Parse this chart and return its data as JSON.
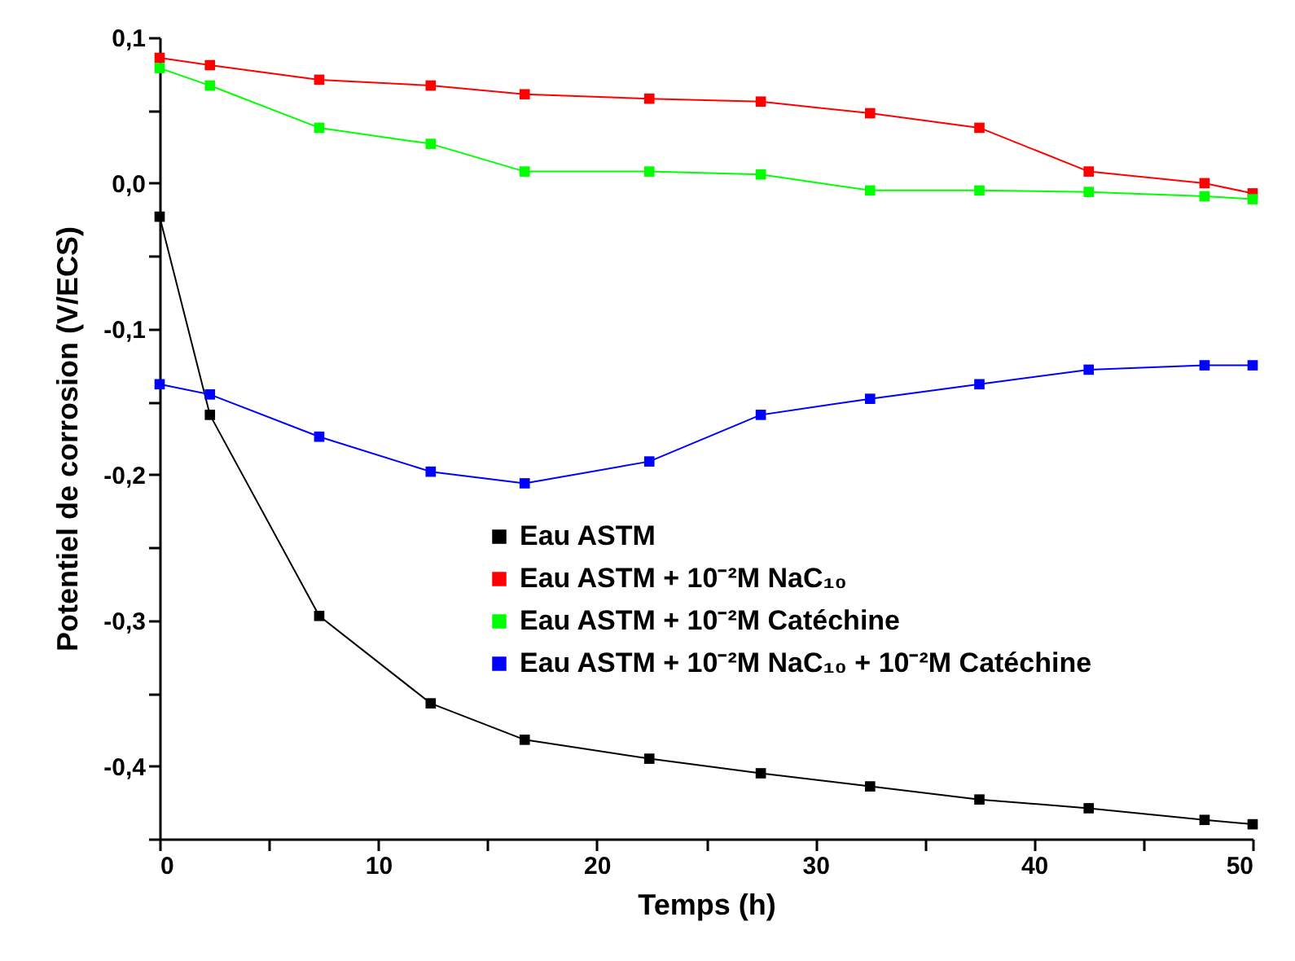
{
  "chart_data": {
    "type": "line",
    "xlabel": "Temps (h)",
    "ylabel": "Potentiel de corrosion (V/ECS)",
    "x": [
      0,
      2.3,
      7.3,
      12.4,
      16.7,
      22.4,
      27.5,
      32.5,
      37.5,
      42.5,
      47.8,
      50
    ],
    "series": [
      {
        "name": "Eau ASTM",
        "color": "#000000",
        "values": [
          -0.023,
          -0.159,
          -0.297,
          -0.357,
          -0.382,
          -0.395,
          -0.405,
          -0.414,
          -0.423,
          -0.429,
          -0.437,
          -0.44
        ]
      },
      {
        "name": "Eau ASTM + 10⁻²M NaC₁₀",
        "color": "#ff0000",
        "values": [
          0.086,
          0.081,
          0.071,
          0.067,
          0.061,
          0.058,
          0.056,
          0.048,
          0.038,
          0.008,
          0.0,
          -0.007
        ]
      },
      {
        "name": "Eau ASTM + 10⁻²M Catéchine",
        "color": "#00ff00",
        "values": [
          0.079,
          0.067,
          0.038,
          0.027,
          0.008,
          0.008,
          0.006,
          -0.005,
          -0.005,
          -0.006,
          -0.009,
          -0.011
        ]
      },
      {
        "name": "Eau ASTM + 10⁻²M NaC₁₀ + 10⁻²M Catéchine",
        "color": "#0000ff",
        "values": [
          -0.138,
          -0.145,
          -0.174,
          -0.198,
          -0.206,
          -0.191,
          -0.159,
          -0.148,
          -0.138,
          -0.128,
          -0.125,
          -0.125
        ]
      }
    ],
    "xlim": [
      0,
      50
    ],
    "xticks": [
      0,
      {
        "value": 5,
        "label": null
      },
      10,
      {
        "value": 15,
        "label": null
      },
      20,
      {
        "value": 25,
        "label": null
      },
      30,
      {
        "value": 35,
        "label": null
      },
      40,
      {
        "value": 45,
        "label": null
      },
      50
    ],
    "ylim": [
      -0.45,
      0.1
    ],
    "yticks": [
      {
        "value": -0.45,
        "label": null
      },
      {
        "value": -0.4,
        "label": "-0,4"
      },
      {
        "value": -0.35,
        "label": null
      },
      {
        "value": -0.3,
        "label": "-0,3"
      },
      {
        "value": -0.25,
        "label": null
      },
      {
        "value": -0.2,
        "label": "-0,2"
      },
      {
        "value": -0.15,
        "label": null
      },
      {
        "value": -0.1,
        "label": "-0,1"
      },
      {
        "value": -0.05,
        "label": null
      },
      {
        "value": 0,
        "label": "0,0"
      },
      {
        "value": 0.05,
        "label": null
      },
      {
        "value": 0.1,
        "label": "0,1"
      }
    ],
    "grid": false,
    "legend": "right",
    "marker": "square",
    "line_style": "solid"
  }
}
